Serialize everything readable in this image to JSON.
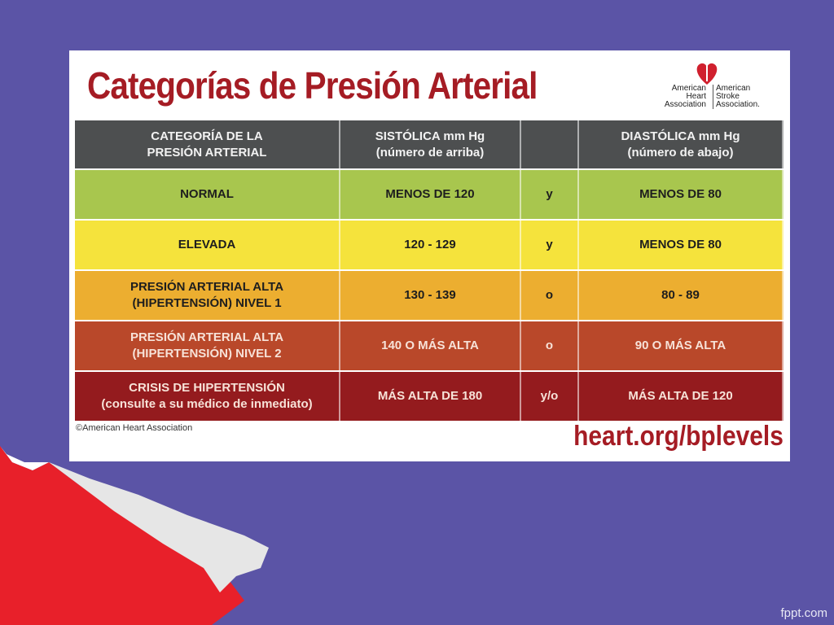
{
  "title": "Categorías de Presión Arterial",
  "logo": {
    "left": [
      "American",
      "Heart",
      "Association"
    ],
    "right": [
      "American",
      "Stroke",
      "Association."
    ]
  },
  "table": {
    "header": [
      [
        "CATEGORÍA DE LA",
        "PRESIÓN ARTERIAL"
      ],
      [
        "SISTÓLICA mm Hg",
        "(número de arriba)"
      ],
      [],
      [
        "DIASTÓLICA mm Hg",
        "(número de abajo)"
      ]
    ],
    "rows": [
      [
        [
          "NORMAL"
        ],
        [
          "MENOS DE 120"
        ],
        [
          "y"
        ],
        [
          "MENOS DE 80"
        ]
      ],
      [
        [
          "ELEVADA"
        ],
        [
          "120 - 129"
        ],
        [
          "y"
        ],
        [
          "MENOS DE 80"
        ]
      ],
      [
        [
          "PRESIÓN ARTERIAL ALTA",
          "(HIPERTENSIÓN) NIVEL 1"
        ],
        [
          "130 - 139"
        ],
        [
          "o"
        ],
        [
          "80 - 89"
        ]
      ],
      [
        [
          "PRESIÓN ARTERIAL ALTA",
          "(HIPERTENSIÓN) NIVEL 2"
        ],
        [
          "140 O MÁS ALTA"
        ],
        [
          "o"
        ],
        [
          "90 O MÁS ALTA"
        ]
      ],
      [
        [
          "CRISIS DE HIPERTENSIÓN",
          "(consulte a su médico de inmediato)"
        ],
        [
          "MÁS ALTA DE 180"
        ],
        [
          "y/o"
        ],
        [
          "MÁS ALTA DE 120"
        ]
      ]
    ]
  },
  "copyright": "©American Heart Association",
  "url": "heart.org/bplevels",
  "watermark": "fppt.com"
}
